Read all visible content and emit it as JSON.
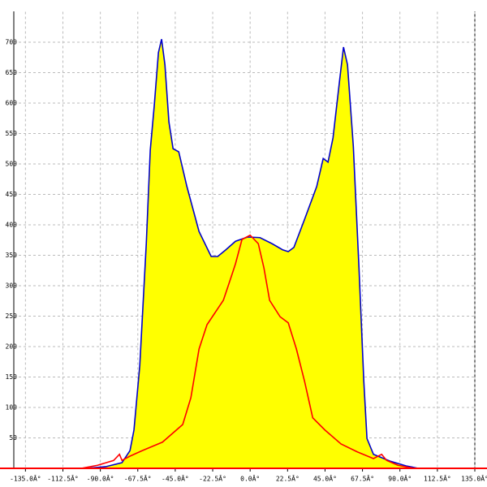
{
  "chart_data": {
    "type": "area",
    "xlim": [
      -142,
      135
    ],
    "ylim": [
      0,
      750
    ],
    "xticks": [
      {
        "value": -135,
        "label": "-135.0Â°"
      },
      {
        "value": -112.5,
        "label": "-112.5Â°"
      },
      {
        "value": -90,
        "label": "-90.0Â°"
      },
      {
        "value": -67.5,
        "label": "-67.5Â°"
      },
      {
        "value": -45,
        "label": "-45.0Â°"
      },
      {
        "value": -22.5,
        "label": "-22.5Â°"
      },
      {
        "value": 0,
        "label": "0.0Â°"
      },
      {
        "value": 22.5,
        "label": "22.5Â°"
      },
      {
        "value": 45,
        "label": "45.0Â°"
      },
      {
        "value": 67.5,
        "label": "67.5Â°"
      },
      {
        "value": 90,
        "label": "90.0Â°"
      },
      {
        "value": 112.5,
        "label": "112.5Â°"
      },
      {
        "value": 135,
        "label": "135.0Â°"
      }
    ],
    "yticks": [
      50,
      100,
      150,
      200,
      250,
      300,
      350,
      400,
      450,
      500,
      550,
      600,
      650,
      700
    ],
    "grid": true,
    "series": [
      {
        "color": "#0000cc",
        "fill": "#ffff00",
        "x": [
          -99,
          -86.8,
          -77,
          -72.2,
          -69.8,
          -66.3,
          -62.4,
          -60,
          -57.6,
          -55.1,
          -53.2,
          -51.2,
          -48.8,
          -46.3,
          -42.9,
          -38,
          -30.7,
          -23.4,
          -19.5,
          -14.6,
          -8.8,
          -1.5,
          5.9,
          13.2,
          19.5,
          22.9,
          26.3,
          32.7,
          40,
          43.9,
          46.8,
          49.8,
          53.7,
          56.1,
          58.5,
          62,
          65.4,
          68.3,
          70.2,
          74.1,
          83.9,
          93.7,
          101
        ],
        "values": [
          0,
          2.7,
          9.3,
          29,
          63,
          169,
          369,
          523,
          596,
          683,
          705,
          663,
          569,
          525,
          520,
          463,
          389,
          348,
          348,
          359,
          373,
          380,
          379,
          369,
          359,
          356,
          363,
          409,
          463,
          509,
          503,
          543,
          636,
          692,
          663,
          529,
          329,
          143,
          49,
          23,
          12,
          4,
          0
        ]
      },
      {
        "color": "#ff0000",
        "x": [
          -101.5,
          -91.7,
          -82,
          -78.5,
          -77,
          -72.2,
          -64.9,
          -52.7,
          -40.5,
          -35.6,
          -30.7,
          -25.9,
          -21,
          -16.1,
          -11.2,
          -8.8,
          -4.9,
          0,
          4.9,
          8.3,
          11.7,
          18,
          22.9,
          27.8,
          32.7,
          37.6,
          44.9,
          54.6,
          64.4,
          74.1,
          79,
          82,
          88.8,
          98.5
        ],
        "values": [
          0,
          5,
          13,
          23,
          13,
          20,
          29,
          43,
          72,
          116,
          196,
          236,
          256,
          276,
          316,
          336,
          376,
          383,
          369,
          329,
          276,
          249,
          239,
          196,
          143,
          83,
          63,
          40,
          27,
          16,
          23,
          13,
          5,
          0
        ]
      }
    ]
  }
}
